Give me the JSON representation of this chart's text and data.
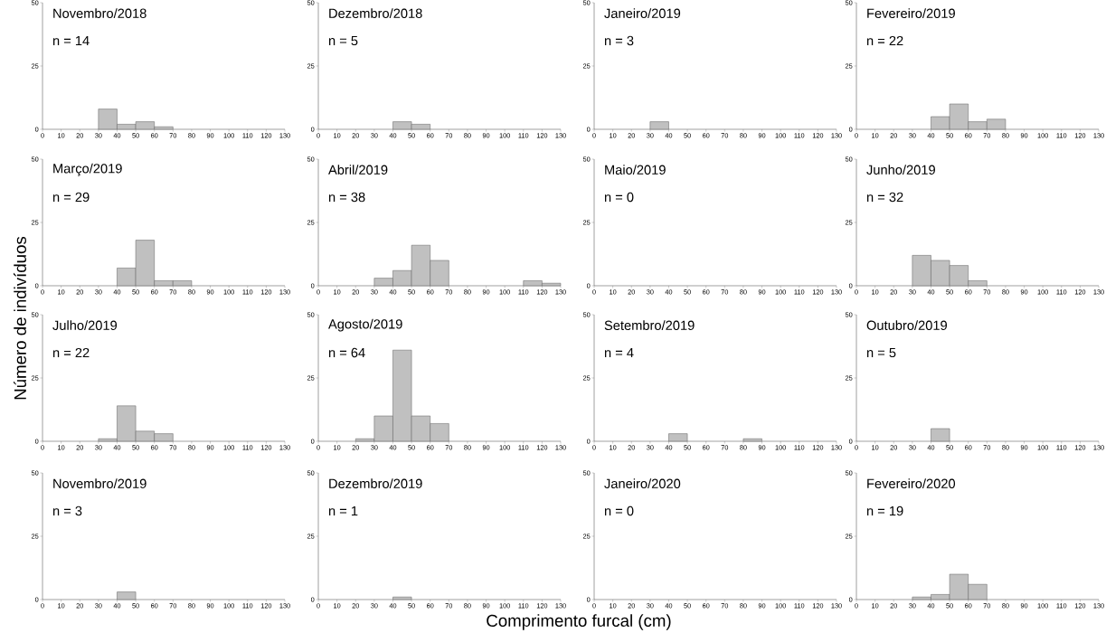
{
  "chart_data": [
    {
      "type": "histogram",
      "title": "Novembro/2018",
      "subtitle": "n = 14",
      "bins": [
        0,
        10,
        20,
        30,
        40,
        50,
        60,
        70,
        80,
        90,
        100,
        110,
        120,
        130
      ],
      "values": [
        0,
        0,
        0,
        8,
        2,
        3,
        1,
        0,
        0,
        0,
        0,
        0,
        0
      ],
      "color": "#c0c0c0",
      "xlim": [
        0,
        130
      ],
      "ylim": [
        0,
        50
      ],
      "xticks": [
        0,
        10,
        20,
        30,
        40,
        50,
        60,
        70,
        80,
        90,
        100,
        110,
        120,
        130
      ],
      "yticks": [
        0,
        25,
        50
      ]
    },
    {
      "type": "histogram",
      "title": "Dezembro/2018",
      "subtitle": "n = 5",
      "bins": [
        0,
        10,
        20,
        30,
        40,
        50,
        60,
        70,
        80,
        90,
        100,
        110,
        120,
        130
      ],
      "values": [
        0,
        0,
        0,
        0,
        3,
        2,
        0,
        0,
        0,
        0,
        0,
        0,
        0
      ],
      "color": "#c0c0c0",
      "xlim": [
        0,
        130
      ],
      "ylim": [
        0,
        50
      ],
      "xticks": [
        0,
        10,
        20,
        30,
        40,
        50,
        60,
        70,
        80,
        90,
        100,
        110,
        120,
        130
      ],
      "yticks": [
        0,
        25,
        50
      ]
    },
    {
      "type": "histogram",
      "title": "Janeiro/2019",
      "subtitle": "n = 3",
      "bins": [
        0,
        10,
        20,
        30,
        40,
        50,
        60,
        70,
        80,
        90,
        100,
        110,
        120,
        130
      ],
      "values": [
        0,
        0,
        0,
        3,
        0,
        0,
        0,
        0,
        0,
        0,
        0,
        0,
        0
      ],
      "color": "#c0c0c0",
      "xlim": [
        0,
        130
      ],
      "ylim": [
        0,
        50
      ],
      "xticks": [
        0,
        10,
        20,
        30,
        40,
        50,
        60,
        70,
        80,
        90,
        100,
        110,
        120,
        130
      ],
      "yticks": [
        0,
        25,
        50
      ]
    },
    {
      "type": "histogram",
      "title": "Fevereiro/2019",
      "subtitle": "n = 22",
      "bins": [
        0,
        10,
        20,
        30,
        40,
        50,
        60,
        70,
        80,
        90,
        100,
        110,
        120,
        130
      ],
      "values": [
        0,
        0,
        0,
        0,
        5,
        10,
        3,
        4,
        0,
        0,
        0,
        0,
        0
      ],
      "color": "#c0c0c0",
      "xlim": [
        0,
        130
      ],
      "ylim": [
        0,
        50
      ],
      "xticks": [
        0,
        10,
        20,
        30,
        40,
        50,
        60,
        70,
        80,
        90,
        100,
        110,
        120,
        130
      ],
      "yticks": [
        0,
        25,
        50
      ]
    },
    {
      "type": "histogram",
      "title": "Março/2019",
      "subtitle": "n = 29",
      "ylabel": "Número de indivíduos",
      "bins": [
        0,
        10,
        20,
        30,
        40,
        50,
        60,
        70,
        80,
        90,
        100,
        110,
        120,
        130
      ],
      "values": [
        0,
        0,
        0,
        0,
        7,
        18,
        2,
        2,
        0,
        0,
        0,
        0,
        0
      ],
      "color": "#c0c0c0",
      "xlim": [
        0,
        130
      ],
      "ylim": [
        0,
        50
      ],
      "xticks": [
        0,
        10,
        20,
        30,
        40,
        50,
        60,
        70,
        80,
        90,
        100,
        110,
        120,
        130
      ],
      "yticks": [
        0,
        25,
        50
      ]
    },
    {
      "type": "histogram",
      "title": "Abril/2019",
      "subtitle": "n = 38",
      "bins": [
        0,
        10,
        20,
        30,
        40,
        50,
        60,
        70,
        80,
        90,
        100,
        110,
        120,
        130
      ],
      "values": [
        0,
        0,
        0,
        3,
        6,
        16,
        10,
        0,
        0,
        0,
        0,
        2,
        1
      ],
      "color": "#c0c0c0",
      "xlim": [
        0,
        130
      ],
      "ylim": [
        0,
        50
      ],
      "xticks": [
        0,
        10,
        20,
        30,
        40,
        50,
        60,
        70,
        80,
        90,
        100,
        110,
        120,
        130
      ],
      "yticks": [
        0,
        25,
        50
      ]
    },
    {
      "type": "histogram",
      "title": "Maio/2019",
      "subtitle": "n = 0",
      "xlim": [
        0,
        130
      ],
      "ylim": [
        0,
        50
      ],
      "xticks": [
        0,
        10,
        20,
        30,
        40,
        50,
        60,
        70,
        80,
        90,
        100,
        110,
        120,
        130
      ],
      "yticks": [
        0,
        25,
        50
      ]
    },
    {
      "type": "histogram",
      "title": "Junho/2019",
      "subtitle": "n = 32",
      "bins": [
        0,
        10,
        20,
        30,
        40,
        50,
        60,
        70,
        80,
        90,
        100,
        110,
        120,
        130
      ],
      "values": [
        0,
        0,
        0,
        12,
        10,
        8,
        2,
        0,
        0,
        0,
        0,
        0,
        0
      ],
      "color": "#c0c0c0",
      "xlim": [
        0,
        130
      ],
      "ylim": [
        0,
        50
      ],
      "xticks": [
        0,
        10,
        20,
        30,
        40,
        50,
        60,
        70,
        80,
        90,
        100,
        110,
        120,
        130
      ],
      "yticks": [
        0,
        25,
        50
      ]
    },
    {
      "type": "histogram",
      "title": "Julho/2019",
      "subtitle": "n = 22",
      "bins": [
        0,
        10,
        20,
        30,
        40,
        50,
        60,
        70,
        80,
        90,
        100,
        110,
        120,
        130
      ],
      "values": [
        0,
        0,
        0,
        1,
        14,
        4,
        3,
        0,
        0,
        0,
        0,
        0,
        0
      ],
      "color": "#c0c0c0",
      "xlim": [
        0,
        130
      ],
      "ylim": [
        0,
        50
      ],
      "xticks": [
        0,
        10,
        20,
        30,
        40,
        50,
        60,
        70,
        80,
        90,
        100,
        110,
        120,
        130
      ],
      "yticks": [
        0,
        25,
        50
      ]
    },
    {
      "type": "histogram",
      "title": "Agosto/2019",
      "subtitle": "n = 64",
      "bins": [
        0,
        10,
        20,
        30,
        40,
        50,
        60,
        70,
        80,
        90,
        100,
        110,
        120,
        130
      ],
      "values": [
        0,
        0,
        1,
        10,
        36,
        10,
        7,
        0,
        0,
        0,
        0,
        0,
        0
      ],
      "color": "#c0c0c0",
      "xlim": [
        0,
        130
      ],
      "ylim": [
        0,
        50
      ],
      "xticks": [
        0,
        10,
        20,
        30,
        40,
        50,
        60,
        70,
        80,
        90,
        100,
        110,
        120,
        130
      ],
      "yticks": [
        0,
        25,
        50
      ]
    },
    {
      "type": "histogram",
      "title": "Setembro/2019",
      "subtitle": "n = 4",
      "bins": [
        0,
        10,
        20,
        30,
        40,
        50,
        60,
        70,
        80,
        90,
        100,
        110,
        120,
        130
      ],
      "values": [
        0,
        0,
        0,
        0,
        3,
        0,
        0,
        0,
        1,
        0,
        0,
        0,
        0
      ],
      "color": "#c0c0c0",
      "xlim": [
        0,
        130
      ],
      "ylim": [
        0,
        50
      ],
      "xticks": [
        0,
        10,
        20,
        30,
        40,
        50,
        60,
        70,
        80,
        90,
        100,
        110,
        120,
        130
      ],
      "yticks": [
        0,
        25,
        50
      ]
    },
    {
      "type": "histogram",
      "title": "Outubro/2019",
      "subtitle": "n = 5",
      "bins": [
        0,
        10,
        20,
        30,
        40,
        50,
        60,
        70,
        80,
        90,
        100,
        110,
        120,
        130
      ],
      "values": [
        0,
        0,
        0,
        0,
        5,
        0,
        0,
        0,
        0,
        0,
        0,
        0,
        0
      ],
      "color": "#c0c0c0",
      "xlim": [
        0,
        130
      ],
      "ylim": [
        0,
        50
      ],
      "xticks": [
        0,
        10,
        20,
        30,
        40,
        50,
        60,
        70,
        80,
        90,
        100,
        110,
        120,
        130
      ],
      "yticks": [
        0,
        25,
        50
      ]
    },
    {
      "type": "histogram",
      "title": "Novembro/2019",
      "subtitle": "n = 3",
      "bins": [
        0,
        10,
        20,
        30,
        40,
        50,
        60,
        70,
        80,
        90,
        100,
        110,
        120,
        130
      ],
      "values": [
        0,
        0,
        0,
        0,
        3,
        0,
        0,
        0,
        0,
        0,
        0,
        0,
        0
      ],
      "color": "#c0c0c0",
      "xlim": [
        0,
        130
      ],
      "ylim": [
        0,
        50
      ],
      "xticks": [
        0,
        10,
        20,
        30,
        40,
        50,
        60,
        70,
        80,
        90,
        100,
        110,
        120,
        130
      ],
      "yticks": [
        0,
        25,
        50
      ]
    },
    {
      "type": "histogram",
      "title": "Dezembro/2019",
      "subtitle": "n = 1",
      "xlabel": "Comprimento furcal (cm)",
      "bins": [
        0,
        10,
        20,
        30,
        40,
        50,
        60,
        70,
        80,
        90,
        100,
        110,
        120,
        130
      ],
      "values": [
        0,
        0,
        0,
        0,
        1,
        0,
        0,
        0,
        0,
        0,
        0,
        0,
        0
      ],
      "color": "#c0c0c0",
      "xlim": [
        0,
        130
      ],
      "ylim": [
        0,
        50
      ],
      "xticks": [
        0,
        10,
        20,
        30,
        40,
        50,
        60,
        70,
        80,
        90,
        100,
        110,
        120,
        130
      ],
      "yticks": [
        0,
        25,
        50
      ]
    },
    {
      "type": "histogram",
      "title": "Janeiro/2020",
      "subtitle": "n = 0",
      "xlim": [
        0,
        130
      ],
      "ylim": [
        0,
        50
      ],
      "xticks": [
        0,
        10,
        20,
        30,
        40,
        50,
        60,
        70,
        80,
        90,
        100,
        110,
        120,
        130
      ],
      "yticks": [
        0,
        25,
        50
      ]
    },
    {
      "type": "histogram",
      "title": "Fevereiro/2020",
      "subtitle": "n = 19",
      "bins": [
        0,
        10,
        20,
        30,
        40,
        50,
        60,
        70,
        80,
        90,
        100,
        110,
        120,
        130
      ],
      "values": [
        0,
        0,
        0,
        1,
        2,
        10,
        6,
        0,
        0,
        0,
        0,
        0,
        0
      ],
      "color": "#c0c0c0",
      "xlim": [
        0,
        130
      ],
      "ylim": [
        0,
        50
      ],
      "xticks": [
        0,
        10,
        20,
        30,
        40,
        50,
        60,
        70,
        80,
        90,
        100,
        110,
        120,
        130
      ],
      "yticks": [
        0,
        25,
        50
      ]
    }
  ]
}
